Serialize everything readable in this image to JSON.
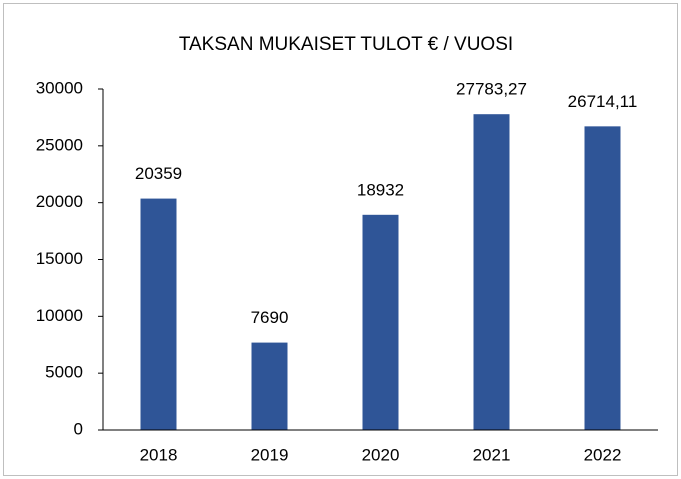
{
  "chart_data": {
    "type": "bar",
    "title": "TAKSAN MUKAISET TULOT € / VUOSI",
    "categories": [
      "2018",
      "2019",
      "2020",
      "2021",
      "2022"
    ],
    "values": [
      20359,
      7690,
      18932,
      27783.27,
      26714.11
    ],
    "value_labels": [
      "20359",
      "7690",
      "18932",
      "27783,27",
      "26714,11"
    ],
    "color": "#2f5597",
    "ylim": [
      0,
      30000
    ],
    "yticks": [
      0,
      5000,
      10000,
      15000,
      20000,
      25000,
      30000
    ],
    "grid": false
  }
}
